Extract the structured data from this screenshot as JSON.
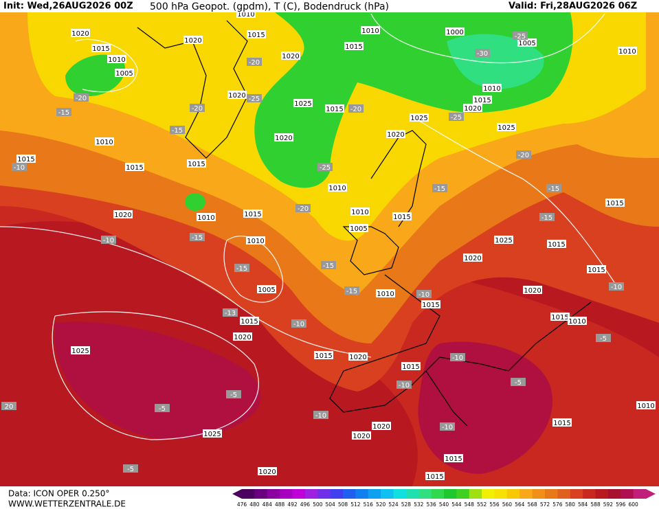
{
  "header": {
    "init": "Init: Wed,26AUG2026 00Z",
    "title": "500 hPa Geopot. (gpdm), T (C), Bodendruck (hPa)",
    "valid": "Valid: Fri,28AUG2026 06Z"
  },
  "footer": {
    "source": "Data: ICON OPER 0.250°",
    "website": "WWW.WETTERZENTRALE.DE"
  },
  "colorbar": {
    "levels": [
      476,
      480,
      484,
      488,
      492,
      496,
      500,
      504,
      508,
      512,
      516,
      520,
      524,
      528,
      532,
      536,
      540,
      544,
      548,
      552,
      556,
      560,
      564,
      568,
      572,
      576,
      580,
      584,
      588,
      592,
      596,
      600
    ],
    "colors": [
      "#4b0060",
      "#6a0080",
      "#8a00a0",
      "#a800c0",
      "#c000d8",
      "#a020e0",
      "#7030e8",
      "#4040f0",
      "#2060f0",
      "#1080f0",
      "#10a0f0",
      "#10c0f0",
      "#10e0e0",
      "#20e0b0",
      "#30e080",
      "#30d850",
      "#20c830",
      "#40d020",
      "#a0e010",
      "#f0f000",
      "#f8e000",
      "#f8c800",
      "#f8a818",
      "#f09018",
      "#e87818",
      "#e06020",
      "#d84020",
      "#c82820",
      "#b81820",
      "#a81030",
      "#b01050",
      "#c0207a"
    ]
  },
  "map": {
    "pressure_labels": [
      1020,
      1015,
      1010,
      1005,
      1020,
      1010,
      1015,
      1020,
      1010,
      1015,
      1000,
      1005,
      1010,
      1010,
      1015,
      1020,
      1025,
      1025,
      1020,
      1015,
      1025,
      1020,
      1020,
      1010,
      1015,
      1015,
      1015,
      1010,
      1020,
      1010,
      1015,
      1010,
      1005,
      1015,
      1010,
      1005,
      1010,
      1015,
      1015,
      1020,
      1025,
      1015,
      1020,
      1015,
      1020,
      1025,
      1015,
      1015,
      1015,
      1020,
      1015,
      1010,
      1025,
      1020,
      1020,
      1015,
      1015,
      1020,
      1015,
      1010
    ],
    "temperature_labels": [
      -20,
      -15,
      -20,
      -15,
      -10,
      -25,
      -20,
      -20,
      -25,
      -20,
      -25,
      -25,
      -30,
      -20,
      -15,
      -15,
      -15,
      -15,
      -10,
      -15,
      -15,
      -15,
      -10,
      -13,
      -10,
      -10,
      -5,
      -10,
      -5,
      -5,
      -10,
      -10,
      -5,
      -10,
      -5,
      20
    ]
  }
}
